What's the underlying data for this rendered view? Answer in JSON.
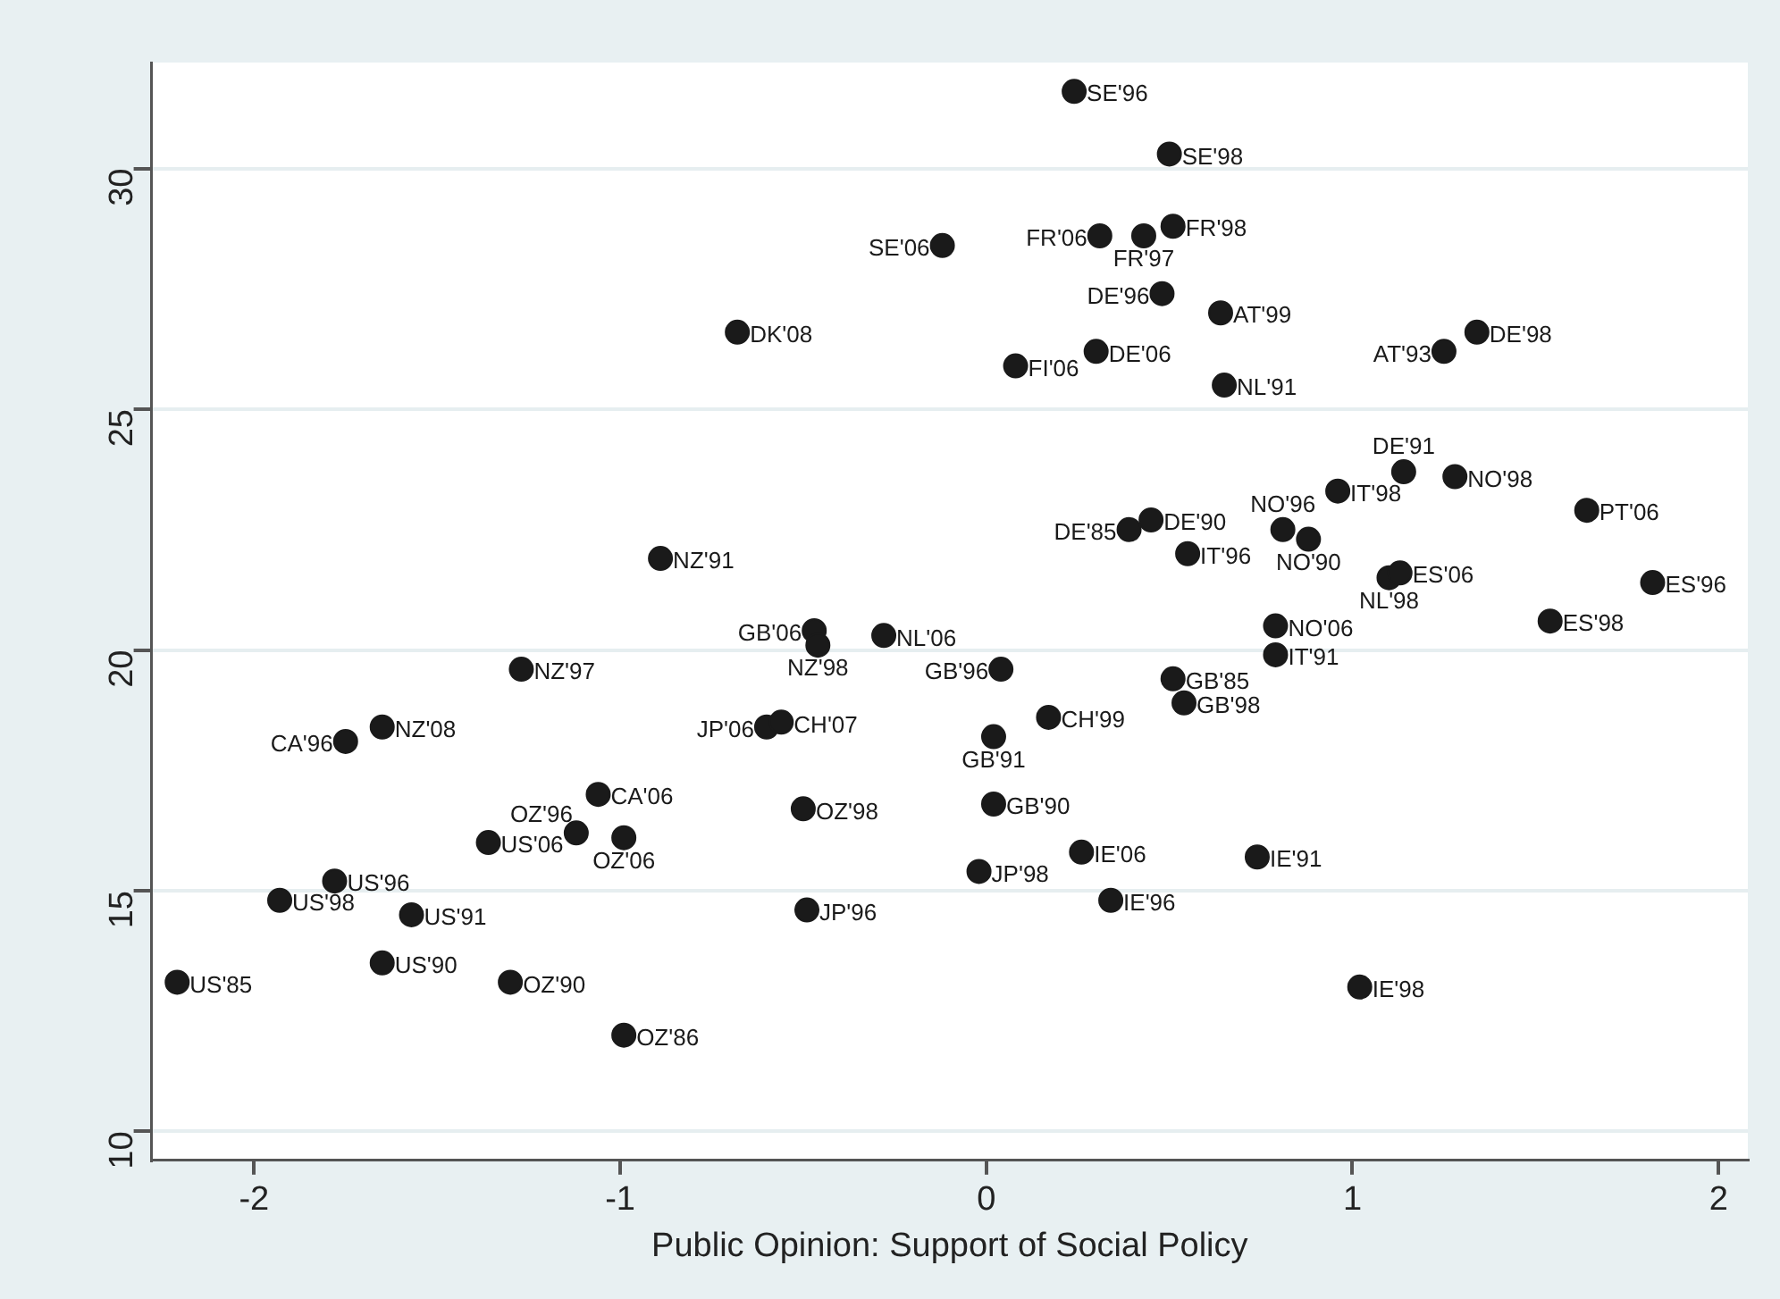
{
  "chart_data": {
    "type": "scatter",
    "xlabel": "Public Opinion: Support of Social Policy",
    "xlim": [
      -2.28,
      2.08
    ],
    "ylim": [
      9.4,
      32.2
    ],
    "xticks": [
      -2,
      -1,
      0,
      1,
      2
    ],
    "yticks": [
      10,
      15,
      20,
      25,
      30
    ],
    "grid": "y",
    "legend": false,
    "marker": "circle",
    "series": [
      {
        "color": "#1a1a1a",
        "x": [
          0.24,
          0.5,
          -0.12,
          0.31,
          0.43,
          0.51,
          0.48,
          0.64,
          1.34,
          1.25,
          0.08,
          0.3,
          0.65,
          -0.68,
          -0.89,
          1.14,
          1.28,
          0.96,
          1.64,
          0.39,
          0.45,
          0.81,
          0.88,
          0.55,
          1.1,
          1.13,
          1.82,
          1.54,
          0.79,
          0.79,
          0.51,
          0.54,
          0.04,
          -0.28,
          0.17,
          0.02,
          0.02,
          -0.02,
          0.26,
          0.74,
          0.34,
          1.02,
          -0.47,
          -0.46,
          -1.27,
          -0.6,
          -0.56,
          -1.65,
          -1.75,
          -1.06,
          -0.5,
          -1.12,
          -0.99,
          -1.36,
          -1.78,
          -1.93,
          -1.57,
          -0.49,
          -1.65,
          -2.21,
          -1.3,
          -0.99
        ],
        "values": [
          31.6,
          30.3,
          28.4,
          28.6,
          28.6,
          28.8,
          27.4,
          27.0,
          26.6,
          26.2,
          25.9,
          26.2,
          25.5,
          26.6,
          21.9,
          23.7,
          23.6,
          23.3,
          22.9,
          22.5,
          22.7,
          22.5,
          22.3,
          22.0,
          21.5,
          21.6,
          21.4,
          20.6,
          20.5,
          19.9,
          19.4,
          18.9,
          19.6,
          20.3,
          18.6,
          18.2,
          16.8,
          15.4,
          15.8,
          15.7,
          14.8,
          13.0,
          20.4,
          20.1,
          19.6,
          18.4,
          18.5,
          18.4,
          18.1,
          17.0,
          16.7,
          16.2,
          16.1,
          16.0,
          15.2,
          14.8,
          14.5,
          14.6,
          13.5,
          13.1,
          13.1,
          12.0
        ]
      }
    ],
    "annotations": [
      {
        "text": "SE'96",
        "x": 0.24,
        "y": 31.6
      },
      {
        "text": "SE'98",
        "x": 0.5,
        "y": 30.3
      },
      {
        "text": "SE'06",
        "x": -0.12,
        "y": 28.4
      },
      {
        "text": "FR'06",
        "x": 0.31,
        "y": 28.6
      },
      {
        "text": "FR'97",
        "x": 0.43,
        "y": 28.6
      },
      {
        "text": "FR'98",
        "x": 0.51,
        "y": 28.8
      },
      {
        "text": "DE'96",
        "x": 0.48,
        "y": 27.4
      },
      {
        "text": "AT'99",
        "x": 0.64,
        "y": 27.0
      },
      {
        "text": "DE'98",
        "x": 1.34,
        "y": 26.6
      },
      {
        "text": "AT'93",
        "x": 1.25,
        "y": 26.2
      },
      {
        "text": "FI'06",
        "x": 0.08,
        "y": 25.9
      },
      {
        "text": "DE'06",
        "x": 0.3,
        "y": 26.2
      },
      {
        "text": "NL'91",
        "x": 0.65,
        "y": 25.5
      },
      {
        "text": "DK'08",
        "x": -0.68,
        "y": 26.6
      },
      {
        "text": "NZ'91",
        "x": -0.89,
        "y": 21.9
      },
      {
        "text": "DE'91",
        "x": 1.14,
        "y": 23.7
      },
      {
        "text": "NO'98",
        "x": 1.28,
        "y": 23.6
      },
      {
        "text": "IT'98",
        "x": 0.96,
        "y": 23.3
      },
      {
        "text": "PT'06",
        "x": 1.64,
        "y": 22.9
      },
      {
        "text": "DE'85",
        "x": 0.39,
        "y": 22.5
      },
      {
        "text": "DE'90",
        "x": 0.45,
        "y": 22.7
      },
      {
        "text": "NO'96",
        "x": 0.81,
        "y": 22.5
      },
      {
        "text": "NO'90",
        "x": 0.88,
        "y": 22.3
      },
      {
        "text": "IT'96",
        "x": 0.55,
        "y": 22.0
      },
      {
        "text": "NL'98",
        "x": 1.1,
        "y": 21.5
      },
      {
        "text": "ES'06",
        "x": 1.13,
        "y": 21.6
      },
      {
        "text": "ES'96",
        "x": 1.82,
        "y": 21.4
      },
      {
        "text": "ES'98",
        "x": 1.54,
        "y": 20.6
      },
      {
        "text": "NO'06",
        "x": 0.79,
        "y": 20.5
      },
      {
        "text": "IT'91",
        "x": 0.79,
        "y": 19.9
      },
      {
        "text": "GB'85",
        "x": 0.51,
        "y": 19.4
      },
      {
        "text": "GB'98",
        "x": 0.54,
        "y": 18.9
      },
      {
        "text": "GB'96",
        "x": 0.04,
        "y": 19.6
      },
      {
        "text": "NL'06",
        "x": -0.28,
        "y": 20.3
      },
      {
        "text": "CH'99",
        "x": 0.17,
        "y": 18.6
      },
      {
        "text": "GB'91",
        "x": 0.02,
        "y": 18.2
      },
      {
        "text": "GB'90",
        "x": 0.02,
        "y": 16.8
      },
      {
        "text": "JP'98",
        "x": -0.02,
        "y": 15.4
      },
      {
        "text": "IE'06",
        "x": 0.26,
        "y": 15.8
      },
      {
        "text": "IE'91",
        "x": 0.74,
        "y": 15.7
      },
      {
        "text": "IE'96",
        "x": 0.34,
        "y": 14.8
      },
      {
        "text": "IE'98",
        "x": 1.02,
        "y": 13.0
      },
      {
        "text": "GB'06",
        "x": -0.47,
        "y": 20.4
      },
      {
        "text": "NZ'98",
        "x": -0.46,
        "y": 20.1
      },
      {
        "text": "NZ'97",
        "x": -1.27,
        "y": 19.6
      },
      {
        "text": "JP'06",
        "x": -0.6,
        "y": 18.4
      },
      {
        "text": "CH'07",
        "x": -0.56,
        "y": 18.5
      },
      {
        "text": "NZ'08",
        "x": -1.65,
        "y": 18.4
      },
      {
        "text": "CA'96",
        "x": -1.75,
        "y": 18.1
      },
      {
        "text": "CA'06",
        "x": -1.06,
        "y": 17.0
      },
      {
        "text": "OZ'98",
        "x": -0.5,
        "y": 16.7
      },
      {
        "text": "OZ'96",
        "x": -1.12,
        "y": 16.2
      },
      {
        "text": "OZ'06",
        "x": -0.99,
        "y": 16.1
      },
      {
        "text": "US'06",
        "x": -1.36,
        "y": 16.0
      },
      {
        "text": "US'96",
        "x": -1.78,
        "y": 15.2
      },
      {
        "text": "US'98",
        "x": -1.93,
        "y": 14.8
      },
      {
        "text": "US'91",
        "x": -1.57,
        "y": 14.5
      },
      {
        "text": "JP'96",
        "x": -0.49,
        "y": 14.6
      },
      {
        "text": "US'90",
        "x": -1.65,
        "y": 13.5
      },
      {
        "text": "US'85",
        "x": -2.21,
        "y": 13.1
      },
      {
        "text": "OZ'90",
        "x": -1.3,
        "y": 13.1
      },
      {
        "text": "OZ'86",
        "x": -0.99,
        "y": 12.0
      }
    ]
  }
}
